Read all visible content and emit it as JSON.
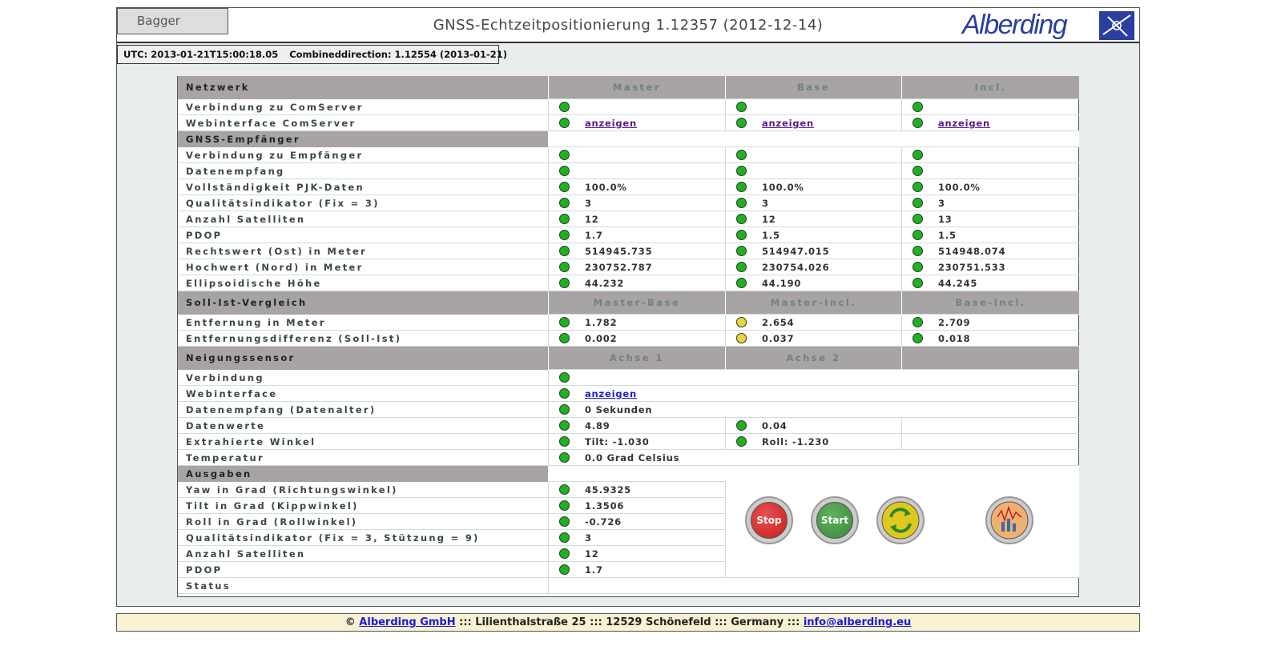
{
  "header": {
    "tab": "Bagger",
    "title": "GNSS-Echtzeitpositionierung 1.12357 (2012-12-14)",
    "logo": "Alberding"
  },
  "status_bar": {
    "utc": "UTC: 2013-01-21T15:00:18.05",
    "direction": "Combineddirection: 1.12554 (2013-01-21)"
  },
  "sections": [
    {
      "title": "Netzwerk",
      "columns": [
        "Master",
        "Base",
        "Incl."
      ],
      "rows": [
        {
          "label": "Verbindung zu ComServer",
          "cells": [
            {
              "status": "green"
            },
            {
              "status": "green"
            },
            {
              "status": "green"
            }
          ]
        },
        {
          "label": "Webinterface ComServer",
          "cells": [
            {
              "status": "green",
              "link": "anzeigen",
              "color": "#551a8b"
            },
            {
              "status": "green",
              "link": "anzeigen",
              "color": "#551a8b"
            },
            {
              "status": "green",
              "link": "anzeigen",
              "color": "#551a8b"
            }
          ]
        }
      ]
    },
    {
      "title": "GNSS-Empfänger",
      "rows": [
        {
          "label": "Verbindung zu Empfänger",
          "cells": [
            {
              "status": "green"
            },
            {
              "status": "green"
            },
            {
              "status": "green"
            }
          ]
        },
        {
          "label": "Datenempfang",
          "cells": [
            {
              "status": "green"
            },
            {
              "status": "green"
            },
            {
              "status": "green"
            }
          ]
        },
        {
          "label": "Vollständigkeit PJK-Daten",
          "cells": [
            {
              "status": "green",
              "text": "100.0%"
            },
            {
              "status": "green",
              "text": "100.0%"
            },
            {
              "status": "green",
              "text": "100.0%"
            }
          ]
        },
        {
          "label": "Qualitätsindikator (Fix = 3)",
          "cells": [
            {
              "status": "green",
              "text": "3"
            },
            {
              "status": "green",
              "text": "3"
            },
            {
              "status": "green",
              "text": "3"
            }
          ]
        },
        {
          "label": "Anzahl Satelliten",
          "cells": [
            {
              "status": "green",
              "text": "12"
            },
            {
              "status": "green",
              "text": "12"
            },
            {
              "status": "green",
              "text": "13"
            }
          ]
        },
        {
          "label": "PDOP",
          "cells": [
            {
              "status": "green",
              "text": "1.7"
            },
            {
              "status": "green",
              "text": "1.5"
            },
            {
              "status": "green",
              "text": "1.5"
            }
          ]
        },
        {
          "label": "Rechtswert (Ost) in Meter",
          "cells": [
            {
              "status": "green",
              "text": "514945.735"
            },
            {
              "status": "green",
              "text": "514947.015"
            },
            {
              "status": "green",
              "text": "514948.074"
            }
          ]
        },
        {
          "label": "Hochwert (Nord) in Meter",
          "cells": [
            {
              "status": "green",
              "text": "230752.787"
            },
            {
              "status": "green",
              "text": "230754.026"
            },
            {
              "status": "green",
              "text": "230751.533"
            }
          ]
        },
        {
          "label": "Ellipsoidische Höhe",
          "cells": [
            {
              "status": "green",
              "text": "44.232"
            },
            {
              "status": "green",
              "text": "44.190"
            },
            {
              "status": "green",
              "text": "44.245"
            }
          ]
        }
      ]
    },
    {
      "title": "Soll-Ist-Vergleich",
      "columns": [
        "Master-Base",
        "Master-Incl.",
        "Base-Incl."
      ],
      "rows": [
        {
          "label": "Entfernung in Meter",
          "cells": [
            {
              "status": "green",
              "text": "1.782"
            },
            {
              "status": "yellow",
              "text": "2.654"
            },
            {
              "status": "green",
              "text": "2.709"
            }
          ]
        },
        {
          "label": "Entfernungsdifferenz (Soll-Ist)",
          "cells": [
            {
              "status": "green",
              "text": "0.002"
            },
            {
              "status": "yellow",
              "text": "0.037"
            },
            {
              "status": "green",
              "text": "0.018"
            }
          ]
        }
      ]
    },
    {
      "title": "Neigungssensor",
      "columns": [
        "Achse 1",
        "Achse 2"
      ],
      "rows": [
        {
          "label": "Verbindung",
          "cells": [
            {
              "status": "green"
            }
          ]
        },
        {
          "label": "Webinterface",
          "cells": [
            {
              "status": "green",
              "link": "anzeigen",
              "color": "#1a1adb"
            }
          ]
        },
        {
          "label": "Datenempfang (Datenalter)",
          "cells": [
            {
              "status": "green",
              "text": "0 Sekunden"
            }
          ]
        },
        {
          "label": "Datenwerte",
          "cells": [
            {
              "status": "green",
              "text": "4.89"
            },
            {
              "status": "green",
              "text": "0.04"
            },
            {}
          ]
        },
        {
          "label": "Extrahierte Winkel",
          "cells": [
            {
              "status": "green",
              "text": "Tilt: -1.030"
            },
            {
              "status": "green",
              "text": "Roll: -1.230"
            },
            {}
          ]
        },
        {
          "label": "Temperatur",
          "cells": [
            {
              "status": "green",
              "text": "0.0 Grad Celsius"
            }
          ]
        }
      ]
    },
    {
      "title": "Ausgaben",
      "buttons": [
        "Stop",
        "Start"
      ],
      "rows": [
        {
          "label": "Yaw in Grad (Richtungswinkel)",
          "cells": [
            {
              "status": "green",
              "text": "45.9325"
            }
          ]
        },
        {
          "label": "Tilt in Grad (Kippwinkel)",
          "cells": [
            {
              "status": "green",
              "text": "1.3506"
            }
          ]
        },
        {
          "label": "Roll in Grad (Rollwinkel)",
          "cells": [
            {
              "status": "green",
              "text": "-0.726"
            }
          ]
        },
        {
          "label": "Qualitätsindikator (Fix = 3, Stützung = 9)",
          "cells": [
            {
              "status": "green",
              "text": "3"
            }
          ]
        },
        {
          "label": "Anzahl Satelliten",
          "cells": [
            {
              "status": "green",
              "text": "12"
            }
          ]
        },
        {
          "label": "PDOP",
          "cells": [
            {
              "status": "green",
              "text": "1.7"
            }
          ]
        },
        {
          "label": "Status",
          "cells": []
        }
      ]
    }
  ],
  "footer": {
    "copyright": "©",
    "company": "Alberding GmbH",
    "address": "::: Lilienthalstraße 25 ::: 12529 Schönefeld ::: Germany :::",
    "email": "info@alberding.eu"
  }
}
